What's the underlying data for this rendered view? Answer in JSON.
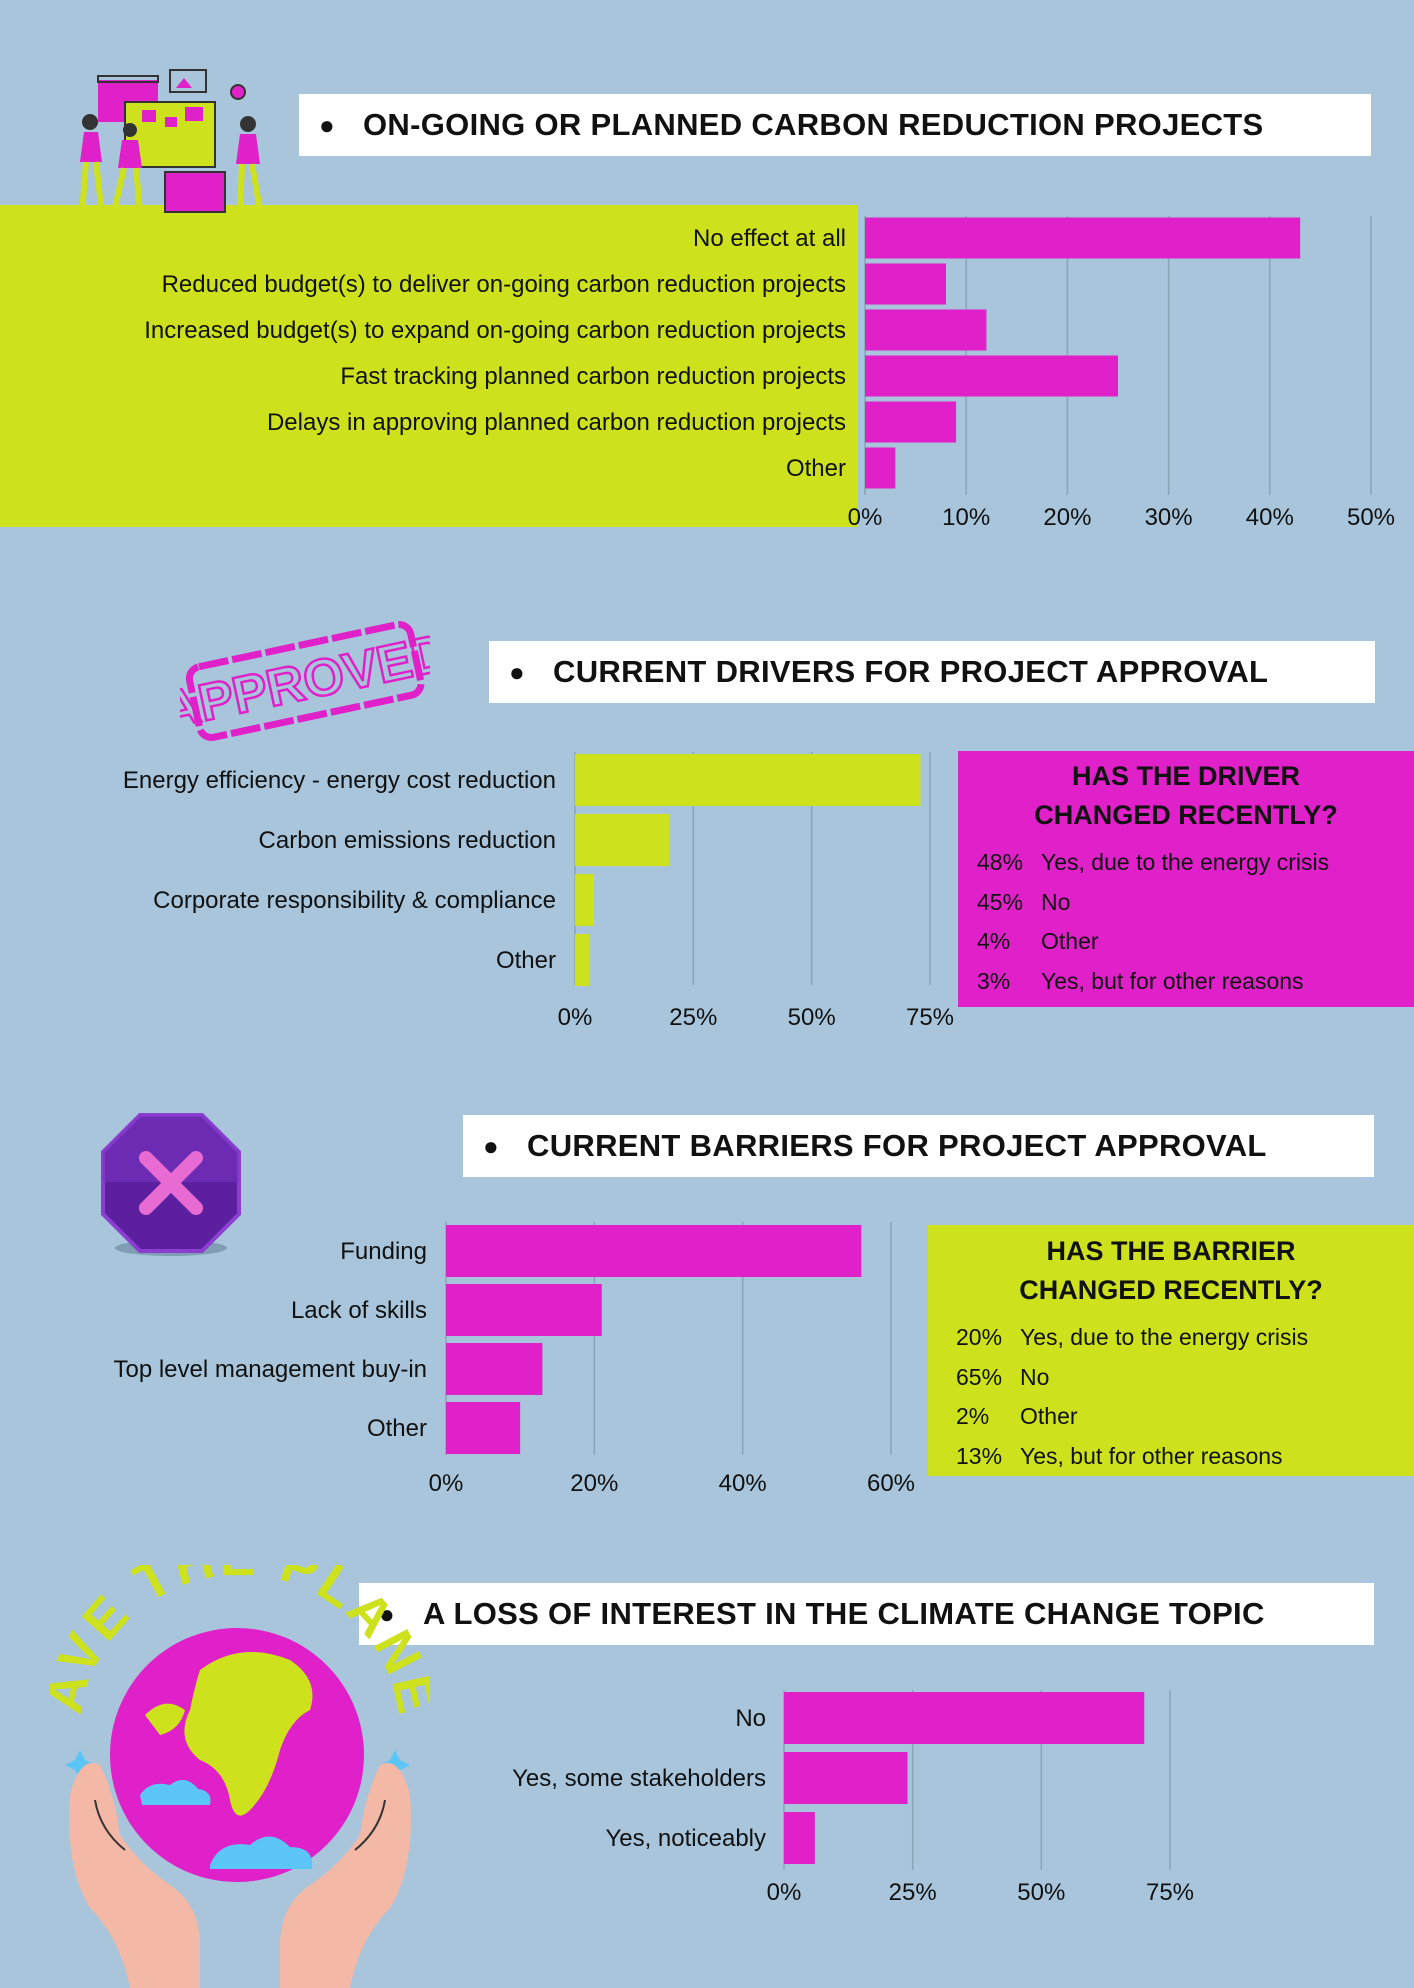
{
  "colors": {
    "background": "#a8c5db",
    "magenta": "#e020c8",
    "lime": "#cde21d",
    "grid": "#8aa3b6"
  },
  "sections": {
    "carbon": {
      "title": "ON-GOING OR PLANNED CARBON REDUCTION PROJECTS"
    },
    "drivers": {
      "title": "CURRENT DRIVERS FOR PROJECT APPROVAL"
    },
    "barriers": {
      "title": "CURRENT BARRIERS FOR PROJECT APPROVAL"
    },
    "interest": {
      "title": "A LOSS OF INTEREST IN THE CLIMATE CHANGE TOPIC"
    }
  },
  "art": {
    "stamp_text": "APPROVED",
    "globe_text": "SAVE THE PLANET"
  },
  "driver_change": {
    "heading_line1": "HAS THE DRIVER",
    "heading_line2": "CHANGED RECENTLY?",
    "items": [
      {
        "pct": "48%",
        "label": "Yes, due to the energy crisis"
      },
      {
        "pct": "45%",
        "label": "No"
      },
      {
        "pct": "4%",
        "label": "Other"
      },
      {
        "pct": "3%",
        "label": "Yes, but for other reasons"
      }
    ]
  },
  "barrier_change": {
    "heading_line1": "HAS THE BARRIER",
    "heading_line2": "CHANGED RECENTLY?",
    "items": [
      {
        "pct": "20%",
        "label": "Yes, due to the energy crisis"
      },
      {
        "pct": "65%",
        "label": "No"
      },
      {
        "pct": "2%",
        "label": "Other"
      },
      {
        "pct": "13%",
        "label": "Yes, but for other reasons"
      }
    ]
  },
  "chart_data": [
    {
      "type": "bar",
      "orientation": "horizontal",
      "color": "#e020c8",
      "categories": [
        "No effect at all",
        "Reduced budget(s) to deliver on-going carbon reduction projects",
        "Increased budget(s) to expand on-going  carbon reduction projects",
        "Fast tracking planned  carbon reduction projects",
        "Delays in approving planned  carbon reduction projects",
        "Other"
      ],
      "values": [
        43,
        8,
        12,
        25,
        9,
        3
      ],
      "xlim": [
        0,
        50
      ],
      "ticks": [
        0,
        10,
        20,
        30,
        40,
        50
      ],
      "tick_labels": [
        "0%",
        "10%",
        "20%",
        "30%",
        "40%",
        "50%"
      ],
      "grid": true
    },
    {
      "type": "bar",
      "orientation": "horizontal",
      "color": "#cde21d",
      "categories": [
        "Energy efficiency - energy cost reduction",
        "Carbon emissions reduction",
        "Corporate responsibility & compliance",
        "Other"
      ],
      "values": [
        73,
        20,
        4,
        3
      ],
      "xlim": [
        0,
        75
      ],
      "ticks": [
        0,
        25,
        50,
        75
      ],
      "tick_labels": [
        "0%",
        "25%",
        "50%",
        "75%"
      ],
      "grid": true
    },
    {
      "type": "bar",
      "orientation": "horizontal",
      "color": "#e020c8",
      "categories": [
        "Funding",
        "Lack of skills",
        "Top level management buy-in",
        "Other"
      ],
      "values": [
        56,
        21,
        13,
        10
      ],
      "xlim": [
        0,
        60
      ],
      "ticks": [
        0,
        20,
        40,
        60
      ],
      "tick_labels": [
        "0%",
        "20%",
        "40%",
        "60%"
      ],
      "grid": true
    },
    {
      "type": "bar",
      "orientation": "horizontal",
      "color": "#e020c8",
      "categories": [
        "No",
        "Yes, some stakeholders",
        "Yes, noticeably"
      ],
      "values": [
        70,
        24,
        6
      ],
      "xlim": [
        0,
        75
      ],
      "ticks": [
        0,
        25,
        50,
        75
      ],
      "tick_labels": [
        "0%",
        "25%",
        "50%",
        "75%"
      ],
      "grid": true
    }
  ]
}
